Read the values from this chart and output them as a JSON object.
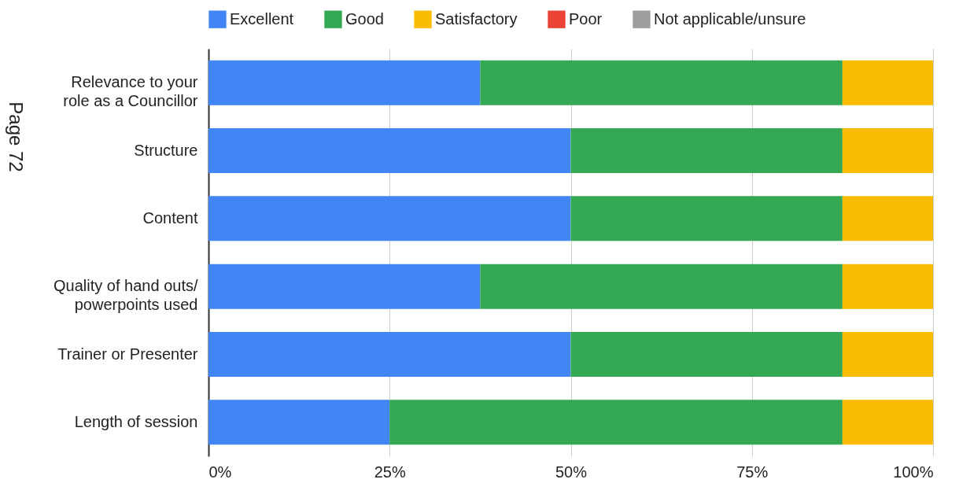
{
  "chart_data": {
    "type": "bar",
    "orientation": "horizontal",
    "stacked": true,
    "categories": [
      "Relevance to your role as a Councillor",
      "Structure",
      "Content",
      "Quality of hand outs/ powerpoints used",
      "Trainer or Presenter",
      "Length of session"
    ],
    "series": [
      {
        "name": "Excellent",
        "color": "#4285f4",
        "values": [
          37.5,
          50,
          50,
          37.5,
          50,
          25
        ]
      },
      {
        "name": "Good",
        "color": "#34a853",
        "values": [
          50,
          37.5,
          37.5,
          50,
          37.5,
          62.5
        ]
      },
      {
        "name": "Satisfactory",
        "color": "#fbbc04",
        "values": [
          12.5,
          12.5,
          12.5,
          12.5,
          12.5,
          12.5
        ]
      },
      {
        "name": "Poor",
        "color": "#ea4335",
        "values": [
          0,
          0,
          0,
          0,
          0,
          0
        ]
      },
      {
        "name": "Not applicable/unsure",
        "color": "#9e9e9e",
        "values": [
          0,
          0,
          0,
          0,
          0,
          0
        ]
      }
    ],
    "xlim": [
      0,
      100
    ],
    "xticks": [
      {
        "value": 0,
        "label": "0%"
      },
      {
        "value": 25,
        "label": "25%"
      },
      {
        "value": 50,
        "label": "50%"
      },
      {
        "value": 75,
        "label": "75%"
      },
      {
        "value": 100,
        "label": "100%"
      }
    ],
    "grid": "x",
    "legend": "top",
    "annotations": [
      "Page 72"
    ]
  }
}
